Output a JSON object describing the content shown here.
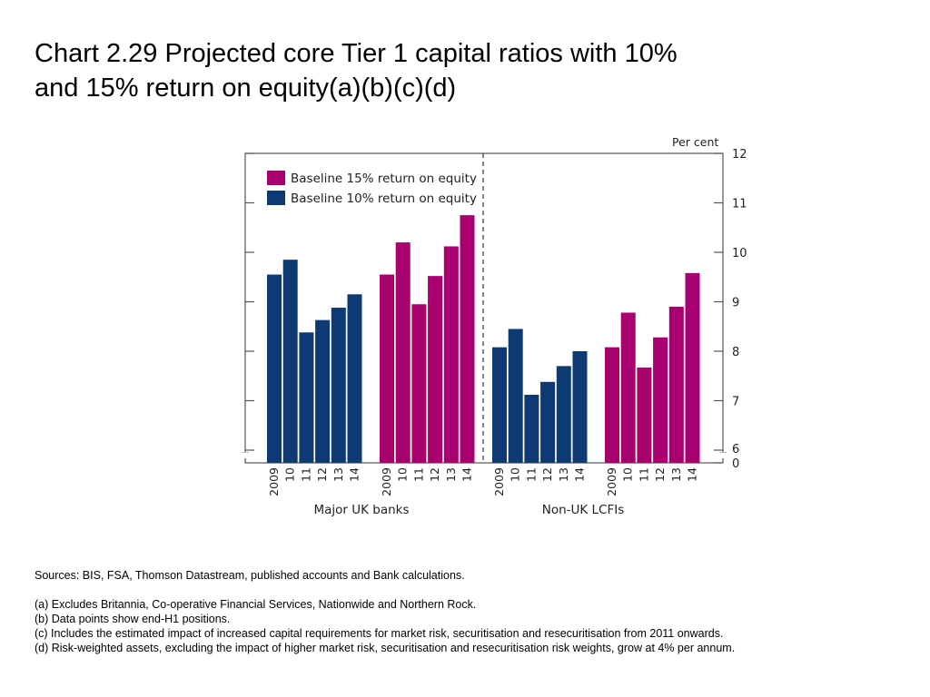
{
  "title": {
    "line1": "Chart 2.29  Projected core Tier 1 capital ratios with 10%",
    "line2": "and 15% return on equity(a)(b)(c)(d)"
  },
  "chart_data": {
    "type": "bar",
    "unit_label": "Per cent",
    "yticks": [
      "12",
      "11",
      "10",
      "9",
      "8",
      "7",
      "6",
      "0"
    ],
    "ylim": [
      6,
      12
    ],
    "y_axis_break": true,
    "grid": false,
    "legend_position": "top-left",
    "colors": {
      "baseline_15": "#a8006e",
      "baseline_10": "#0d3a73"
    },
    "groups": [
      {
        "label": "Major UK banks",
        "series": [
          {
            "name": "Baseline 10% return on equity",
            "color_key": "baseline_10",
            "x": [
              "2009",
              "10",
              "11",
              "12",
              "13",
              "14"
            ],
            "values": [
              9.55,
              9.85,
              8.38,
              8.63,
              8.88,
              9.15
            ]
          },
          {
            "name": "Baseline 15% return on equity",
            "color_key": "baseline_15",
            "x": [
              "2009",
              "10",
              "11",
              "12",
              "13",
              "14"
            ],
            "values": [
              9.55,
              10.2,
              8.95,
              9.52,
              10.12,
              10.75
            ]
          }
        ]
      },
      {
        "label": "Non-UK LCFIs",
        "series": [
          {
            "name": "Baseline 10% return on equity",
            "color_key": "baseline_10",
            "x": [
              "2009",
              "10",
              "11",
              "12",
              "13",
              "14"
            ],
            "values": [
              8.08,
              8.45,
              7.12,
              7.38,
              7.7,
              8.0
            ]
          },
          {
            "name": "Baseline 15% return on equity",
            "color_key": "baseline_15",
            "x": [
              "2009",
              "10",
              "11",
              "12",
              "13",
              "14"
            ],
            "values": [
              8.08,
              8.78,
              7.67,
              8.28,
              8.9,
              9.58
            ]
          }
        ]
      }
    ],
    "legend": [
      {
        "label": "Baseline 15% return on equity",
        "color_key": "baseline_15"
      },
      {
        "label": "Baseline 10% return on equity",
        "color_key": "baseline_10"
      }
    ]
  },
  "notes": {
    "sources": "Sources:  BIS, FSA, Thomson Datastream, published accounts and Bank calculations.",
    "footnotes": [
      "(a)  Excludes Britannia, Co-operative Financial Services, Nationwide and Northern Rock.",
      "(b)  Data points show end-H1 positions.",
      "(c)  Includes the estimated impact of increased capital requirements for market risk, securitisation and resecuritisation from 2011 onwards.",
      "(d)  Risk-weighted assets, excluding the impact of higher market risk, securitisation and resecuritisation risk weights, grow at 4% per annum."
    ]
  }
}
